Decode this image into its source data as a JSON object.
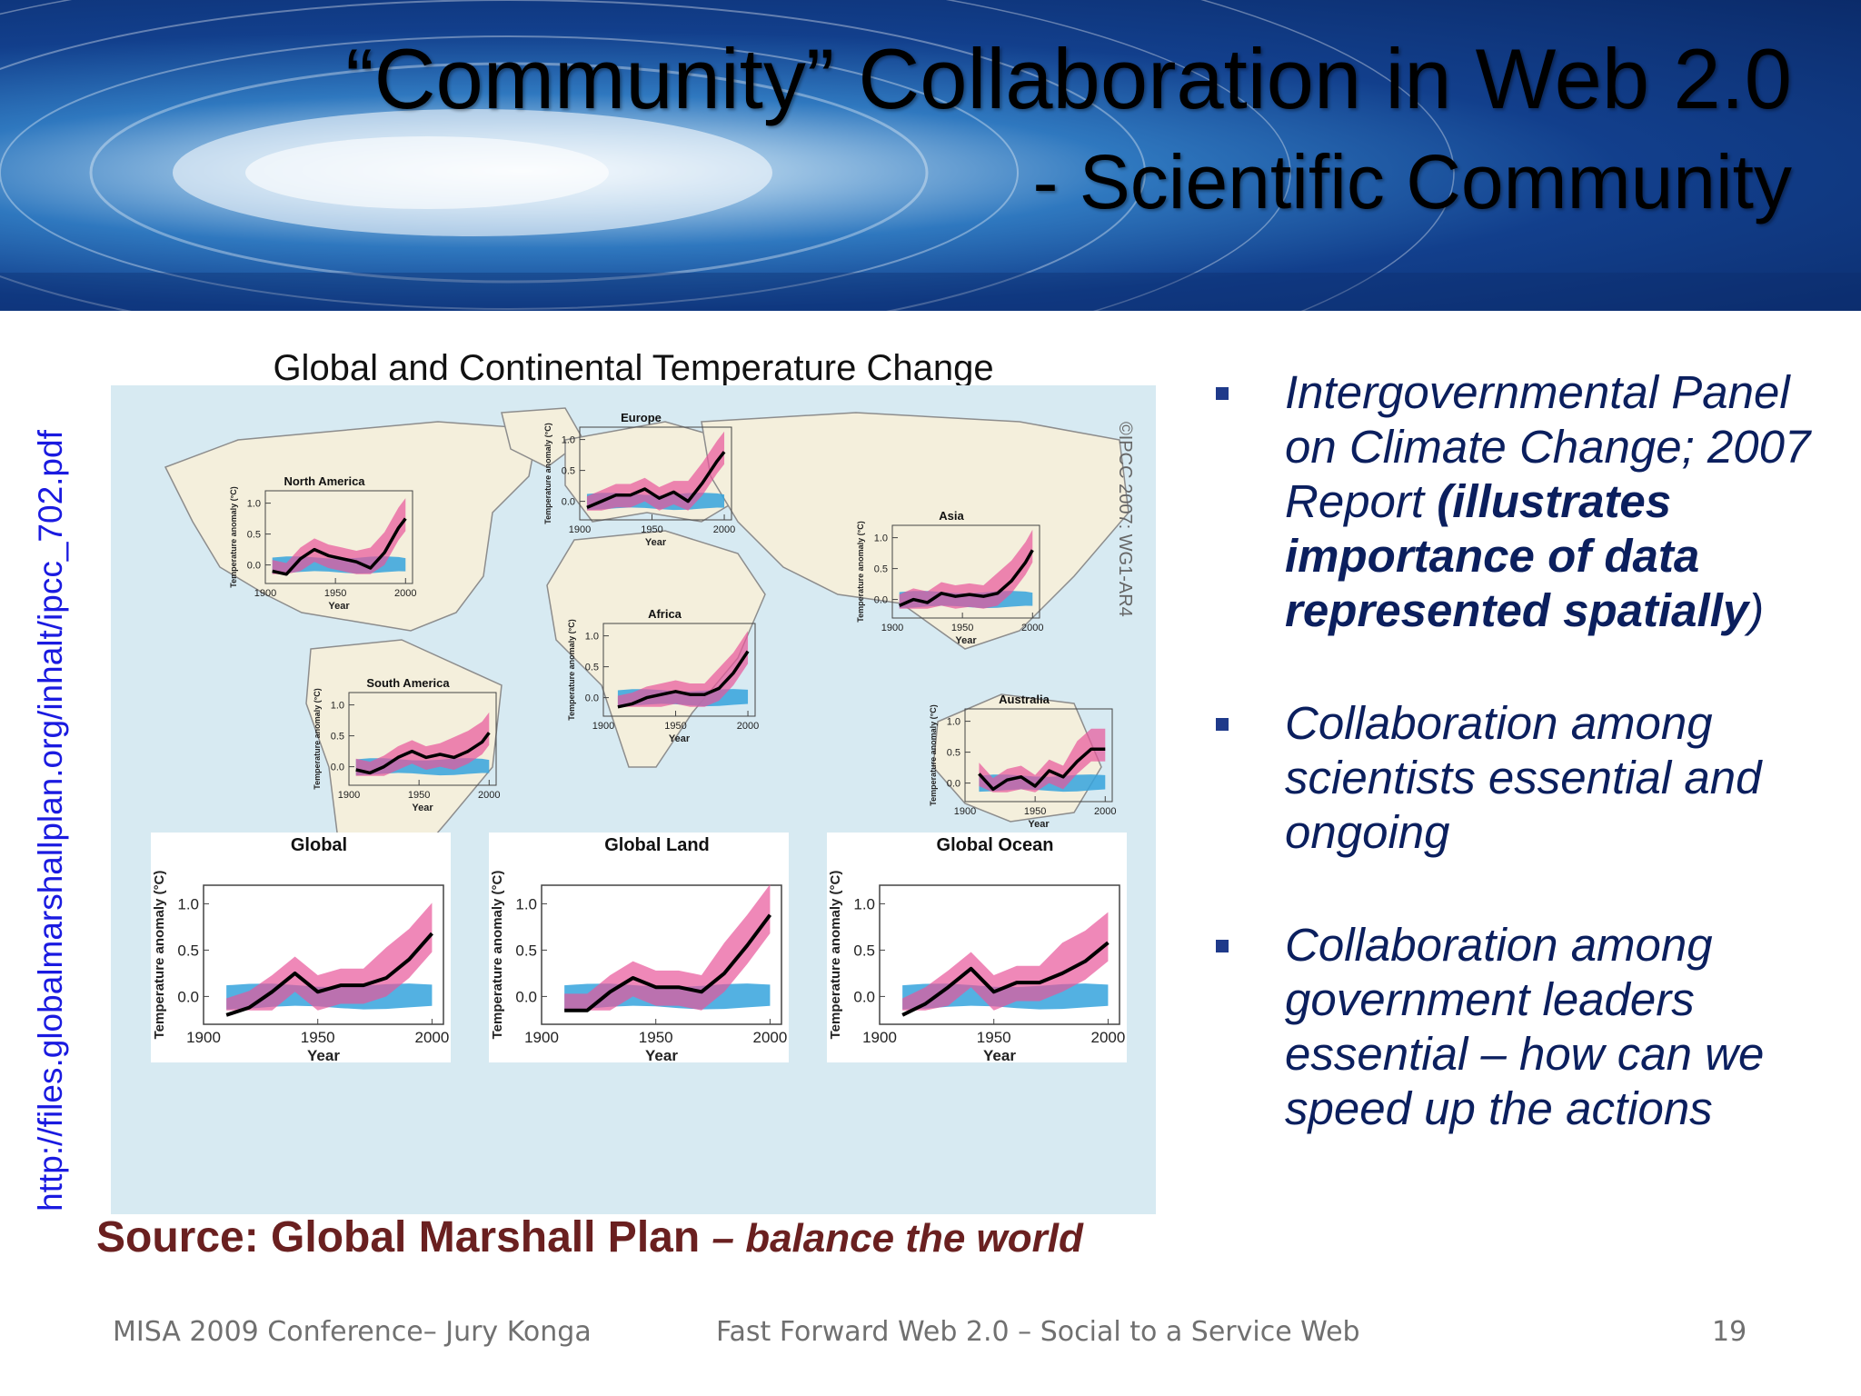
{
  "slide": {
    "title_line1": "“Community” Collaboration in Web 2.0",
    "title_line2": "- Scientific Community",
    "side_url": "http://files.globalmarshallplan.org/inhalt/ipcc_702.pdf"
  },
  "figure": {
    "title": "Global and Continental Temperature Change",
    "copyright": "©IPCC 2007: WG1-AR4",
    "regional_panels": [
      {
        "name": "North America",
        "ylabel": "Temperature anomaly (°C)",
        "xlabel": "Year",
        "yticks": [
          "1.0",
          "0.5",
          "0.0"
        ],
        "xticks": [
          "1900",
          "1950",
          "2000"
        ]
      },
      {
        "name": "Europe",
        "ylabel": "Temperature anomaly (°C)",
        "xlabel": "Year",
        "yticks": [
          "1.0",
          "0.5",
          "0.0"
        ],
        "xticks": [
          "1900",
          "1950",
          "2000"
        ]
      },
      {
        "name": "Asia",
        "ylabel": "Temperature anomaly (°C)",
        "xlabel": "Year",
        "yticks": [
          "1.0",
          "0.5",
          "0.0"
        ],
        "xticks": [
          "1900",
          "1950",
          "2000"
        ]
      },
      {
        "name": "Africa",
        "ylabel": "Temperature anomaly (°C)",
        "xlabel": "Year",
        "yticks": [
          "1.0",
          "0.5",
          "0.0"
        ],
        "xticks": [
          "1900",
          "1950",
          "2000"
        ]
      },
      {
        "name": "South America",
        "ylabel": "Temperature anomaly (°C)",
        "xlabel": "Year",
        "yticks": [
          "1.0",
          "0.5",
          "0.0"
        ],
        "xticks": [
          "1900",
          "1950",
          "2000"
        ]
      },
      {
        "name": "Australia",
        "ylabel": "Temperature anomaly (°C)",
        "xlabel": "Year",
        "yticks": [
          "1.0",
          "0.5",
          "0.0"
        ],
        "xticks": [
          "1900",
          "1950",
          "2000"
        ]
      }
    ],
    "global_panels": [
      {
        "name": "Global",
        "ylabel": "Temperature anomaly (°C)",
        "xlabel": "Year",
        "yticks": [
          "1.0",
          "0.5",
          "0.0"
        ],
        "xticks": [
          "1900",
          "1950",
          "2000"
        ]
      },
      {
        "name": "Global Land",
        "ylabel": "Temperature anomaly (°C)",
        "xlabel": "Year",
        "yticks": [
          "1.0",
          "0.5",
          "0.0"
        ],
        "xticks": [
          "1900",
          "1950",
          "2000"
        ]
      },
      {
        "name": "Global Ocean",
        "ylabel": "Temperature anomaly (°C)",
        "xlabel": "Year",
        "yticks": [
          "1.0",
          "0.5",
          "0.0"
        ],
        "xticks": [
          "1900",
          "1950",
          "2000"
        ]
      }
    ]
  },
  "chart_data": [
    {
      "type": "line",
      "title": "North America",
      "xlabel": "Year",
      "ylabel": "Temperature anomaly (°C)",
      "xlim": [
        1900,
        2005
      ],
      "ylim": [
        -0.3,
        1.2
      ],
      "series": [
        {
          "x": [
            1905,
            1915,
            1925,
            1935,
            1945,
            1955,
            1965,
            1975,
            1985,
            1995,
            2000
          ],
          "values": [
            -0.1,
            -0.15,
            0.1,
            0.25,
            0.15,
            0.1,
            0.05,
            -0.05,
            0.2,
            0.6,
            0.75
          ]
        }
      ]
    },
    {
      "type": "line",
      "title": "Europe",
      "xlabel": "Year",
      "ylabel": "Temperature anomaly (°C)",
      "xlim": [
        1900,
        2005
      ],
      "ylim": [
        -0.3,
        1.2
      ],
      "series": [
        {
          "x": [
            1905,
            1915,
            1925,
            1935,
            1945,
            1955,
            1965,
            1975,
            1985,
            1995,
            2000
          ],
          "values": [
            -0.1,
            0.0,
            0.1,
            0.1,
            0.2,
            0.05,
            0.15,
            0.0,
            0.3,
            0.65,
            0.8
          ]
        }
      ]
    },
    {
      "type": "line",
      "title": "Asia",
      "xlabel": "Year",
      "ylabel": "Temperature anomaly (°C)",
      "xlim": [
        1900,
        2005
      ],
      "ylim": [
        -0.3,
        1.2
      ],
      "series": [
        {
          "x": [
            1905,
            1915,
            1925,
            1935,
            1945,
            1955,
            1965,
            1975,
            1985,
            1995,
            2000
          ],
          "values": [
            -0.1,
            0.0,
            -0.05,
            0.1,
            0.05,
            0.08,
            0.05,
            0.1,
            0.3,
            0.6,
            0.8
          ]
        }
      ]
    },
    {
      "type": "line",
      "title": "Africa",
      "xlabel": "Year",
      "ylabel": "Temperature anomaly (°C)",
      "xlim": [
        1900,
        2005
      ],
      "ylim": [
        -0.3,
        1.2
      ],
      "series": [
        {
          "x": [
            1910,
            1920,
            1930,
            1940,
            1950,
            1960,
            1970,
            1980,
            1990,
            2000
          ],
          "values": [
            -0.15,
            -0.1,
            0.0,
            0.05,
            0.1,
            0.05,
            0.05,
            0.15,
            0.4,
            0.75
          ]
        }
      ]
    },
    {
      "type": "line",
      "title": "South America",
      "xlabel": "Year",
      "ylabel": "Temperature anomaly (°C)",
      "xlim": [
        1900,
        2005
      ],
      "ylim": [
        -0.3,
        1.2
      ],
      "series": [
        {
          "x": [
            1905,
            1915,
            1925,
            1935,
            1945,
            1955,
            1965,
            1975,
            1985,
            1995,
            2000
          ],
          "values": [
            -0.05,
            -0.1,
            0.0,
            0.15,
            0.25,
            0.15,
            0.2,
            0.15,
            0.25,
            0.4,
            0.55
          ]
        }
      ]
    },
    {
      "type": "line",
      "title": "Australia",
      "xlabel": "Year",
      "ylabel": "Temperature anomaly (°C)",
      "xlim": [
        1900,
        2005
      ],
      "ylim": [
        -0.3,
        1.2
      ],
      "series": [
        {
          "x": [
            1910,
            1920,
            1930,
            1940,
            1950,
            1960,
            1970,
            1980,
            1990,
            2000
          ],
          "values": [
            0.15,
            -0.1,
            0.05,
            0.1,
            -0.05,
            0.2,
            0.1,
            0.35,
            0.55,
            0.55
          ]
        }
      ]
    },
    {
      "type": "line",
      "title": "Global",
      "xlabel": "Year",
      "ylabel": "Temperature anomaly (°C)",
      "xlim": [
        1900,
        2005
      ],
      "ylim": [
        -0.3,
        1.2
      ],
      "series": [
        {
          "x": [
            1910,
            1920,
            1930,
            1940,
            1950,
            1960,
            1970,
            1980,
            1990,
            2000
          ],
          "values": [
            -0.2,
            -0.12,
            0.05,
            0.25,
            0.05,
            0.12,
            0.12,
            0.2,
            0.4,
            0.68
          ]
        }
      ]
    },
    {
      "type": "line",
      "title": "Global Land",
      "xlabel": "Year",
      "ylabel": "Temperature anomaly (°C)",
      "xlim": [
        1900,
        2005
      ],
      "ylim": [
        -0.3,
        1.2
      ],
      "series": [
        {
          "x": [
            1910,
            1920,
            1930,
            1940,
            1950,
            1960,
            1970,
            1980,
            1990,
            2000
          ],
          "values": [
            -0.15,
            -0.15,
            0.05,
            0.2,
            0.1,
            0.1,
            0.05,
            0.25,
            0.55,
            0.88
          ]
        }
      ]
    },
    {
      "type": "line",
      "title": "Global Ocean",
      "xlabel": "Year",
      "ylabel": "Temperature anomaly (°C)",
      "xlim": [
        1900,
        2005
      ],
      "ylim": [
        -0.3,
        1.2
      ],
      "series": [
        {
          "x": [
            1910,
            1920,
            1930,
            1940,
            1950,
            1960,
            1970,
            1980,
            1990,
            2000
          ],
          "values": [
            -0.2,
            -0.08,
            0.1,
            0.3,
            0.05,
            0.15,
            0.15,
            0.25,
            0.38,
            0.58
          ]
        }
      ]
    }
  ],
  "source": {
    "label": "Source:  Global Marshall Plan",
    "tagline": "– balance the world"
  },
  "bullets": [
    {
      "text": "Intergovernmental Panel on Climate Change; 2007 Report ",
      "bold": "(illustrates importance of data represented spatially",
      "close": ")"
    },
    {
      "text": "Collaboration among scientists essential and ongoing"
    },
    {
      "text": "Collaboration among government leaders essential – how can we speed  up the actions"
    }
  ],
  "footer": {
    "left": "MISA 2009 Conference– Jury Konga",
    "center": "Fast Forward Web 2.0 – Social to a Service Web",
    "page": "19"
  },
  "colors": {
    "banner_dark": "#0b2b6a",
    "map_background": "#d7eaf2",
    "land": "#f4efdc",
    "band_models_with_forcing": "#e8559a",
    "band_natural_forcing": "#35a3dd",
    "band_overlap": "#7a5ab0",
    "observed_line": "#000000",
    "bullet_text": "#0b1f5e",
    "source_text": "#6a2020",
    "url_text": "#1a1ae0",
    "footer_text": "#707070"
  }
}
